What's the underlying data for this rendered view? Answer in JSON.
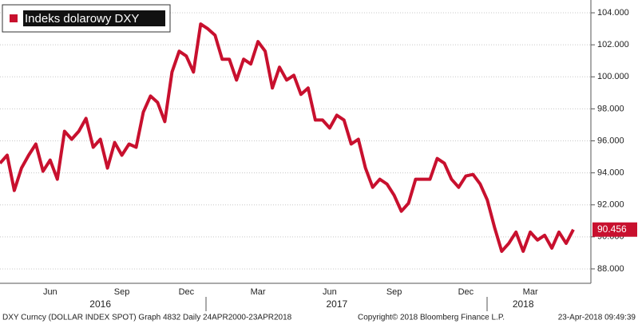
{
  "chart_data": {
    "type": "line",
    "legend": "top-left",
    "grid": true,
    "series": [
      {
        "name": "Indeks dolarowy DXY",
        "color": "#c8102e",
        "values": [
          94.6,
          95.1,
          92.9,
          94.3,
          95.1,
          95.8,
          94.1,
          94.8,
          93.6,
          96.6,
          96.1,
          96.6,
          97.4,
          95.6,
          96.1,
          94.3,
          95.9,
          95.1,
          95.8,
          95.6,
          97.8,
          98.8,
          98.4,
          97.2,
          100.3,
          101.6,
          101.3,
          100.3,
          103.3,
          103.0,
          102.6,
          101.1,
          101.1,
          99.8,
          101.1,
          100.8,
          102.2,
          101.6,
          99.3,
          100.6,
          99.8,
          100.1,
          98.9,
          99.3,
          97.3,
          97.3,
          96.8,
          97.6,
          97.3,
          95.8,
          96.1,
          94.3,
          93.1,
          93.6,
          93.3,
          92.6,
          91.6,
          92.1,
          93.6,
          93.6,
          93.6,
          94.9,
          94.6,
          93.6,
          93.1,
          93.8,
          93.9,
          93.3,
          92.3,
          90.6,
          89.1,
          89.6,
          90.3,
          89.1,
          90.3,
          89.8,
          90.1,
          89.3,
          90.3,
          89.6,
          90.456
        ]
      }
    ],
    "categories": [
      null,
      null,
      null,
      null,
      null,
      null,
      null,
      "Jun",
      null,
      null,
      null,
      null,
      null,
      null,
      null,
      null,
      null,
      "Sep",
      null,
      null,
      null,
      null,
      null,
      null,
      null,
      null,
      "Dec",
      null,
      null,
      null,
      null,
      null,
      null,
      null,
      null,
      null,
      "Mar",
      null,
      null,
      null,
      null,
      null,
      null,
      null,
      null,
      null,
      "Jun",
      null,
      null,
      null,
      null,
      null,
      null,
      null,
      null,
      "Sep",
      null,
      null,
      null,
      null,
      null,
      null,
      null,
      null,
      null,
      "Dec",
      null,
      null,
      null,
      null,
      null,
      null,
      null,
      null,
      "Mar",
      null,
      null,
      null,
      null,
      null,
      null
    ],
    "year_categories": [
      null,
      null,
      null,
      null,
      null,
      null,
      null,
      null,
      null,
      null,
      null,
      null,
      null,
      null,
      "2016",
      null,
      null,
      null,
      null,
      null,
      null,
      null,
      null,
      null,
      null,
      null,
      null,
      null,
      null,
      null,
      null,
      null,
      null,
      null,
      null,
      null,
      null,
      null,
      null,
      null,
      null,
      null,
      null,
      null,
      null,
      null,
      null,
      "2017",
      null,
      null,
      null,
      null,
      null,
      null,
      null,
      null,
      null,
      null,
      null,
      null,
      null,
      null,
      null,
      null,
      null,
      null,
      null,
      null,
      null,
      null,
      null,
      null,
      null,
      "2018",
      null,
      null,
      null,
      null,
      null,
      null,
      null
    ],
    "ylim": [
      87.1,
      104.7
    ],
    "yticks": [
      {
        "value": 88,
        "label": "88.000"
      },
      {
        "value": 90,
        "label": "90.000"
      },
      {
        "value": 92,
        "label": "92.000"
      },
      {
        "value": 94,
        "label": "94.000"
      },
      {
        "value": 96,
        "label": "96.000"
      },
      {
        "value": 98,
        "label": "98.000"
      },
      {
        "value": 100,
        "label": "100.000"
      },
      {
        "value": 102,
        "label": "102.000"
      },
      {
        "value": 104,
        "label": "104.000"
      }
    ],
    "footer": {
      "left": "DXY Curncy (DOLLAR INDEX SPOT) Graph 4832  Daily 24APR2000-23APR2018",
      "center": "Copyright© 2018 Bloomberg Finance L.P.",
      "right": "23-Apr-2018 09:49:39"
    }
  }
}
